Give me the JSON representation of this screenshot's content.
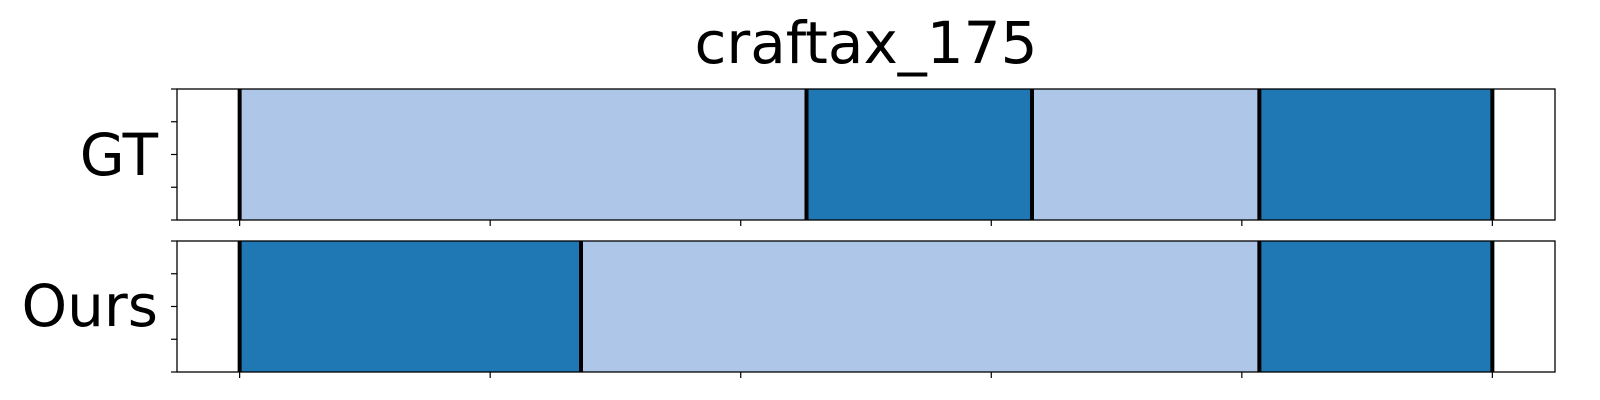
{
  "chart_data": {
    "type": "segment_timeline",
    "title": "craftax_175",
    "x_range": [
      0,
      220
    ],
    "x_ticks": [
      10,
      50,
      90,
      130,
      170,
      210
    ],
    "y_ticks_per_row": 5,
    "colors": {
      "light": "#aec7e8",
      "dark": "#1f77b4",
      "boundary": "#000000"
    },
    "rows": [
      {
        "label": "GT",
        "segments": [
          {
            "start": 10,
            "end": 100.5,
            "class": "light"
          },
          {
            "start": 100.5,
            "end": 136.5,
            "class": "dark"
          },
          {
            "start": 136.5,
            "end": 172.8,
            "class": "light"
          },
          {
            "start": 172.8,
            "end": 210,
            "class": "dark"
          }
        ]
      },
      {
        "label": "Ours",
        "segments": [
          {
            "start": 10,
            "end": 64.5,
            "class": "dark"
          },
          {
            "start": 64.5,
            "end": 172.8,
            "class": "light"
          },
          {
            "start": 172.8,
            "end": 210,
            "class": "dark"
          }
        ]
      }
    ]
  }
}
